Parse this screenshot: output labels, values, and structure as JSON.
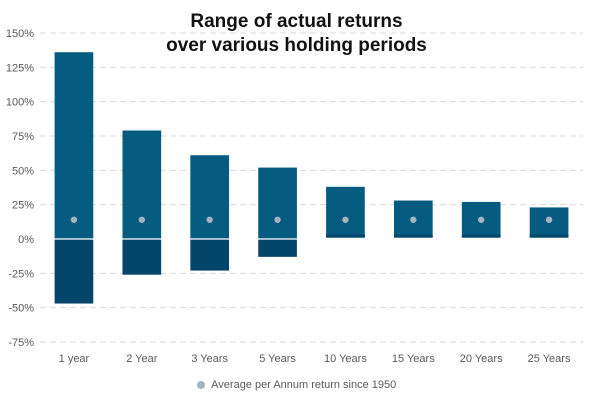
{
  "chart_data": {
    "type": "bar",
    "title_lines": [
      "Range of  actual returns",
      "over various holding periods"
    ],
    "categories": [
      "1 year",
      "2 Year",
      "3 Years",
      "5 Years",
      "10 Years",
      "15 Years",
      "20 Years",
      "25 Years"
    ],
    "series": [
      {
        "name": "Range of actual returns (%)",
        "min": [
          -47,
          -26,
          -23,
          -13,
          1,
          1,
          1,
          1
        ],
        "max": [
          136,
          79,
          61,
          52,
          38,
          28,
          27,
          23
        ],
        "colors": {
          "above_zero": "#055c80",
          "below_zero": "#04466a"
        }
      },
      {
        "name": "Average per Annum return since 1950",
        "values": [
          14,
          14,
          14,
          14,
          14,
          14,
          14,
          14
        ],
        "color": "#a6b4c0"
      }
    ],
    "yticks": [
      150,
      125,
      100,
      75,
      50,
      25,
      0,
      -25,
      -50,
      -75
    ],
    "ytick_suffix": "%",
    "ylim": [
      -75,
      150
    ],
    "xlabel": "",
    "ylabel": "",
    "grid": true,
    "legend_position": "bottom"
  },
  "legend": {
    "label": "Average per Annum return since 1950",
    "color": "#a6b4c0"
  }
}
